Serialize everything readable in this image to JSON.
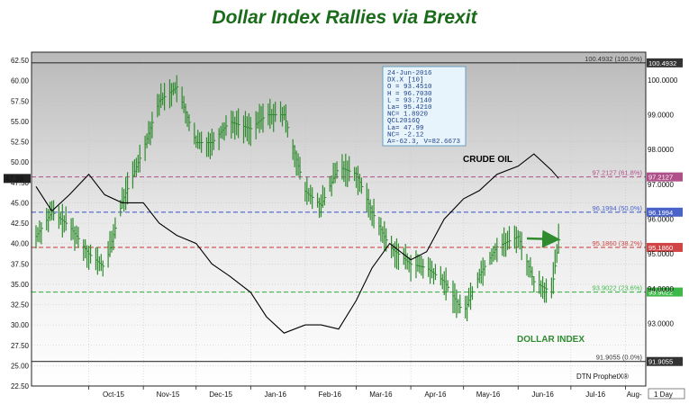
{
  "title": "Dollar Index Rallies via Brexit",
  "chart_data": {
    "type": "bar",
    "left_axis": {
      "ticks": [
        "62.50",
        "60.00",
        "57.50",
        "55.00",
        "52.50",
        "50.00",
        "47.50",
        "45.00",
        "42.50",
        "40.00",
        "37.50",
        "35.00",
        "32.50",
        "30.00",
        "27.50",
        "25.00",
        "22.50"
      ],
      "ylim": [
        22.5,
        63.5
      ],
      "last_label": "47.99"
    },
    "right_axis": {
      "ticks": [
        "100.0000",
        "99.0000",
        "98.0000",
        "97.0000",
        "96.0000",
        "95.0000",
        "94.0000",
        "93.0000"
      ],
      "ylim": [
        91.2,
        100.8
      ]
    },
    "x_ticks": [
      "Oct-15",
      "Nov-15",
      "Dec-15",
      "Jan-16",
      "Feb-16",
      "Mar-16",
      "Apr-16",
      "May-16",
      "Jun-16",
      "Jul-16",
      "Aug-"
    ],
    "interval": "1 Day",
    "fib_levels": [
      {
        "label": "100.4932 (100.0%)",
        "value": 100.4932,
        "tag": "100.4932",
        "color": "#333333"
      },
      {
        "label": "97.2127 (61.8%)",
        "value": 97.2127,
        "tag": "97.2127",
        "color": "#b0508a"
      },
      {
        "label": "96.1994 (50.0%)",
        "value": 96.1994,
        "tag": "96.1994",
        "color": "#4a63c8"
      },
      {
        "label": "95.1860 (38.2%)",
        "value": 95.186,
        "tag": "95.1860",
        "color": "#d04545"
      },
      {
        "label": "93.9022 (23.6%)",
        "value": 93.9022,
        "tag": "93.9022",
        "color": "#3fb84a"
      },
      {
        "label": "91.9055 (0.0%)",
        "value": 91.9055,
        "tag": "91.9055",
        "color": "#333333"
      }
    ],
    "info_box": [
      "24-Jun-2016",
      "DX.X [10]",
      "O = 93.4510",
      "H = 96.7030",
      "L = 93.7140",
      "La= 95.4210",
      "NC= 1.8920",
      "QCL2016Q",
      "La= 47.99",
      "NC= -2.12",
      "A=-62.3, V=82.6673"
    ],
    "series": [
      {
        "name": "CRUDE OIL",
        "axis": "left",
        "color": "#000000",
        "x": [
          "2015-09-01",
          "2015-09-10",
          "2015-09-20",
          "2015-10-01",
          "2015-10-10",
          "2015-10-20",
          "2015-11-01",
          "2015-11-10",
          "2015-11-20",
          "2015-12-01",
          "2015-12-10",
          "2015-12-20",
          "2016-01-01",
          "2016-01-10",
          "2016-01-20",
          "2016-02-01",
          "2016-02-10",
          "2016-02-20",
          "2016-03-01",
          "2016-03-10",
          "2016-03-20",
          "2016-04-01",
          "2016-04-10",
          "2016-04-20",
          "2016-05-01",
          "2016-05-10",
          "2016-05-20",
          "2016-06-01",
          "2016-06-10",
          "2016-06-20",
          "2016-06-24"
        ],
        "values": [
          47,
          44,
          46,
          48.5,
          46,
          45,
          45,
          42.5,
          41,
          40,
          37.5,
          36,
          34,
          31,
          29,
          30,
          30,
          29.5,
          33,
          37,
          40,
          38,
          39,
          43,
          45.5,
          46.5,
          48.5,
          49.5,
          51,
          49,
          48
        ]
      },
      {
        "name": "DOLLAR INDEX",
        "axis": "right",
        "color": "#2e8b2e",
        "x": [
          "2015-09-01",
          "2015-09-10",
          "2015-09-20",
          "2015-10-01",
          "2015-10-10",
          "2015-10-20",
          "2015-11-01",
          "2015-11-10",
          "2015-11-20",
          "2015-12-01",
          "2015-12-10",
          "2015-12-20",
          "2016-01-01",
          "2016-01-10",
          "2016-01-20",
          "2016-02-01",
          "2016-02-10",
          "2016-02-20",
          "2016-03-01",
          "2016-03-10",
          "2016-03-20",
          "2016-04-01",
          "2016-04-10",
          "2016-04-20",
          "2016-05-01",
          "2016-05-10",
          "2016-05-20",
          "2016-06-01",
          "2016-06-10",
          "2016-06-20",
          "2016-06-24"
        ],
        "values": [
          95.5,
          96.2,
          95.8,
          95.0,
          94.6,
          96.5,
          98.0,
          99.4,
          99.8,
          98.2,
          98.2,
          98.8,
          98.6,
          99.0,
          99.0,
          96.8,
          96.4,
          97.5,
          97.3,
          96.2,
          95.2,
          94.7,
          94.6,
          94.2,
          93.3,
          94.4,
          95.2,
          95.5,
          94.2,
          93.9,
          95.4
        ]
      }
    ],
    "annotations": [
      "CRUDE OIL",
      "DOLLAR INDEX"
    ],
    "watermark": "DTN ProphetX®",
    "grid": true,
    "legend": "none"
  }
}
